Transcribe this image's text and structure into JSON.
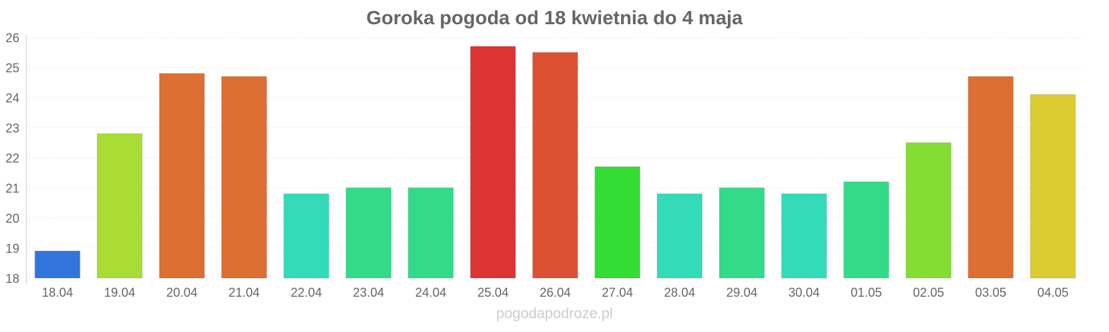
{
  "chart_data": {
    "type": "bar",
    "title": "Goroka pogoda od 18 kwietnia do 4 maja",
    "xlabel": "",
    "ylabel": "",
    "ylim": [
      18,
      26
    ],
    "yticks": [
      "18",
      "19",
      "20",
      "21",
      "22",
      "23",
      "24",
      "25",
      "26"
    ],
    "grid": true,
    "categories": [
      "18.04",
      "19.04",
      "20.04",
      "21.04",
      "22.04",
      "23.04",
      "24.04",
      "25.04",
      "26.04",
      "27.04",
      "28.04",
      "29.04",
      "30.04",
      "01.05",
      "02.05",
      "03.05",
      "04.05"
    ],
    "values": [
      18.9,
      22.8,
      24.8,
      24.7,
      20.8,
      21.0,
      21.0,
      25.7,
      25.5,
      21.7,
      20.8,
      21.0,
      20.8,
      21.2,
      22.5,
      24.7,
      24.1
    ],
    "colors": [
      "#3375dd",
      "#a9dd33",
      "#dd6f33",
      "#dd6f33",
      "#33dbb9",
      "#33db89",
      "#33db89",
      "#dd3333",
      "#dd5133",
      "#33dd33",
      "#33dbb9",
      "#33db89",
      "#33dbb9",
      "#33db89",
      "#84dd33",
      "#dd6f33",
      "#dccb33"
    ]
  },
  "footer": "pogodapodroze.pl"
}
